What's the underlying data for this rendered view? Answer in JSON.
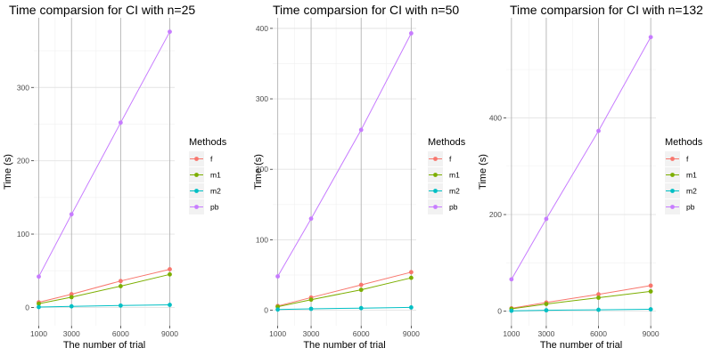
{
  "legend": {
    "title": "Methods",
    "items": [
      {
        "key": "f",
        "label": "f",
        "color": "#F8766D"
      },
      {
        "key": "m1",
        "label": "m1",
        "color": "#7CAE00"
      },
      {
        "key": "m2",
        "label": "m2",
        "color": "#00BFC4"
      },
      {
        "key": "pb",
        "label": "pb",
        "color": "#C77CFF"
      }
    ]
  },
  "chart_data": [
    {
      "type": "line",
      "title": "Time comparsion for CI with n=25",
      "xlabel": "The number of trial",
      "ylabel": "Time (s)",
      "x": [
        1000,
        3000,
        6000,
        9000
      ],
      "x_ticks": [
        "1000",
        "3000",
        "6000",
        "9000"
      ],
      "y_ticks": [
        0,
        100,
        200,
        300
      ],
      "ylim": [
        -25,
        395
      ],
      "grid": true,
      "legend_position": "right",
      "series": [
        {
          "name": "f",
          "values": [
            7,
            18,
            36,
            52
          ]
        },
        {
          "name": "m1",
          "values": [
            5,
            14,
            29,
            45
          ]
        },
        {
          "name": "m2",
          "values": [
            0.5,
            1.5,
            2.5,
            3.5
          ]
        },
        {
          "name": "pb",
          "values": [
            42,
            127,
            252,
            376
          ]
        }
      ]
    },
    {
      "type": "line",
      "title": "Time comparsion for CI with n=50",
      "xlabel": "The number of trial",
      "ylabel": "Time (s)",
      "x": [
        1000,
        3000,
        6000,
        9000
      ],
      "x_ticks": [
        "1000",
        "3000",
        "6000",
        "9000"
      ],
      "y_ticks": [
        0,
        100,
        200,
        300,
        400
      ],
      "ylim": [
        -22,
        415
      ],
      "grid": true,
      "legend_position": "right",
      "series": [
        {
          "name": "f",
          "values": [
            6,
            18,
            36,
            54
          ]
        },
        {
          "name": "m1",
          "values": [
            5,
            15,
            29,
            46
          ]
        },
        {
          "name": "m2",
          "values": [
            1,
            2,
            3,
            4
          ]
        },
        {
          "name": "pb",
          "values": [
            48,
            130,
            256,
            393
          ]
        }
      ]
    },
    {
      "type": "line",
      "title": "Time comparsion for CI with n=132",
      "xlabel": "The number of trial",
      "ylabel": "Time (s)",
      "x": [
        1000,
        3000,
        6000,
        9000
      ],
      "x_ticks": [
        "1000",
        "3000",
        "6000",
        "9000"
      ],
      "y_ticks": [
        0,
        200,
        400
      ],
      "ylim": [
        -30,
        607
      ],
      "grid": true,
      "legend_position": "right",
      "series": [
        {
          "name": "f",
          "values": [
            6,
            18,
            35,
            53
          ]
        },
        {
          "name": "m1",
          "values": [
            5,
            15,
            28,
            41
          ]
        },
        {
          "name": "m2",
          "values": [
            1,
            2,
            3,
            4
          ]
        },
        {
          "name": "pb",
          "values": [
            66,
            191,
            373,
            567
          ]
        }
      ]
    }
  ]
}
